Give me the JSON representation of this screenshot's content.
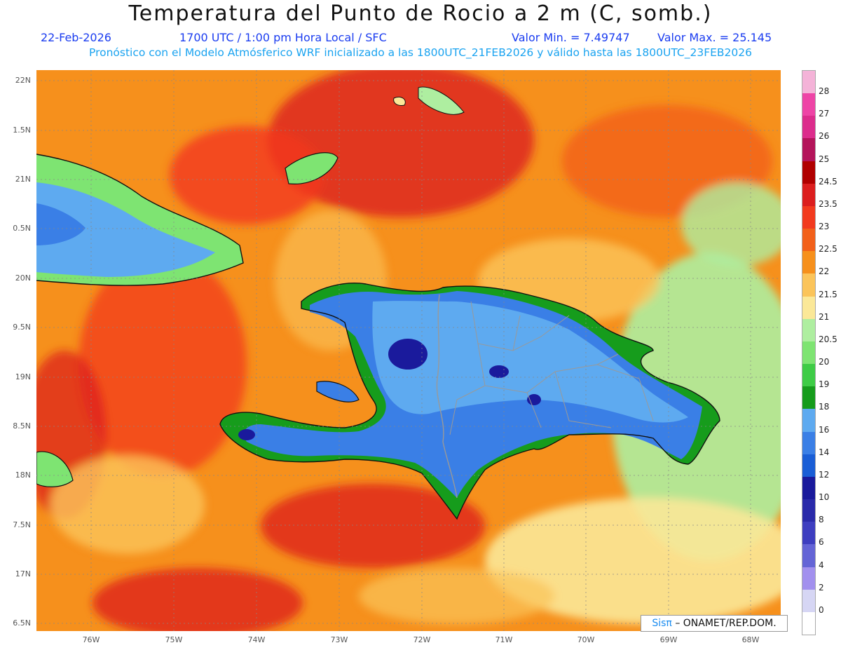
{
  "title": "Temperatura del Punto de Rocio a 2 m (C, somb.)",
  "subtitle": {
    "date": "22-Feb-2026",
    "time": "1700 UTC / 1:00 pm Hora Local / SFC",
    "min": "Valor Min. = 7.49747",
    "max": "Valor Max. = 25.145",
    "model": "Pronóstico con el Modelo Atmósferico WRF inicializado a las 1800UTC_21FEB2026 y válido hasta las  1800UTC_23FEB2026"
  },
  "lat_labels": [
    "22N",
    "1.5N",
    "21N",
    "0.5N",
    "20N",
    "9.5N",
    "19N",
    "8.5N",
    "18N",
    "7.5N",
    "17N",
    "6.5N"
  ],
  "lon_labels": [
    "76W",
    "75W",
    "74W",
    "73W",
    "72W",
    "71W",
    "70W",
    "69W",
    "68W"
  ],
  "colorbar": {
    "labels": [
      "28",
      "27",
      "26",
      "25",
      "24.5",
      "23.5",
      "23",
      "22.5",
      "22",
      "21.5",
      "21",
      "20.5",
      "20",
      "19",
      "18",
      "16",
      "14",
      "12",
      "10",
      "8",
      "6",
      "4",
      "2",
      "0"
    ],
    "colors": [
      "#f4b3d8",
      "#ee44a6",
      "#dc2c8c",
      "#b4145a",
      "#b10000",
      "#dc1e1e",
      "#f23a1e",
      "#f2601a",
      "#f6901c",
      "#fbc45a",
      "#fbe898",
      "#aeeea0",
      "#7ee472",
      "#3ecc46",
      "#169c1c",
      "#5eaaf0",
      "#3a7fe6",
      "#1a5ed6",
      "#1a1a9c",
      "#2a2aaa",
      "#3e3ec0",
      "#6464d6",
      "#a290ee",
      "#d6d6f4",
      "#ffffff"
    ]
  },
  "credit": {
    "brand": "Sisπ",
    "text": "– ONAMET/REP.DOM."
  }
}
